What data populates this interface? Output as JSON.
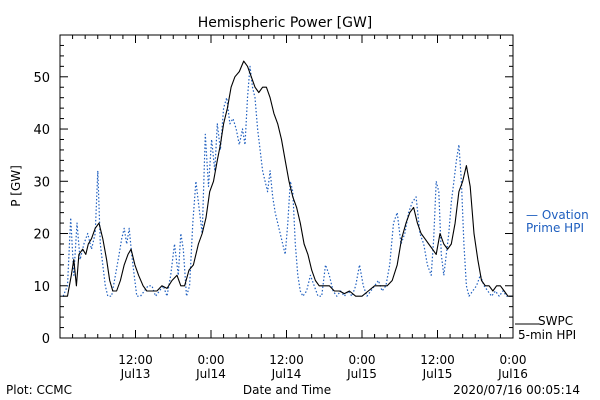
{
  "chart_data": {
    "type": "line",
    "title": "Hemispheric Power [GW]",
    "xlabel": "Date and Time",
    "ylabel": "P [GW]",
    "ylim": [
      0,
      58
    ],
    "yticks": [
      0,
      10,
      20,
      30,
      40,
      50
    ],
    "xlim": [
      0,
      72
    ],
    "x_unit": "hours from 2020-07-13 00:00",
    "xticks": [
      {
        "x": 12,
        "top": "12:00",
        "bottom": "Jul13"
      },
      {
        "x": 24,
        "top": "0:00",
        "bottom": "Jul14"
      },
      {
        "x": 36,
        "top": "12:00",
        "bottom": "Jul14"
      },
      {
        "x": 48,
        "top": "0:00",
        "bottom": "Jul15"
      },
      {
        "x": 60,
        "top": "12:00",
        "bottom": "Jul15"
      },
      {
        "x": 72,
        "top": "0:00",
        "bottom": "Jul16"
      }
    ],
    "grid": false,
    "legend": [
      {
        "name": "— Ovation",
        "name2": "Prime HPI",
        "color": "#1f5fbf",
        "style": "dotted"
      },
      {
        "name": "SWPC",
        "name2": "5-min HPI",
        "color": "#000000",
        "style": "solid"
      }
    ],
    "series": [
      {
        "name": "SWPC 5-min HPI",
        "color": "#000000",
        "style": "solid",
        "points": [
          [
            0.5,
            8
          ],
          [
            1.2,
            8
          ],
          [
            1.8,
            12
          ],
          [
            2.2,
            15
          ],
          [
            2.6,
            10
          ],
          [
            3,
            16
          ],
          [
            3.6,
            17
          ],
          [
            4.1,
            16
          ],
          [
            4.5,
            18
          ],
          [
            5,
            19
          ],
          [
            5.6,
            21
          ],
          [
            6.2,
            22
          ],
          [
            6.8,
            19
          ],
          [
            7.4,
            15
          ],
          [
            7.9,
            11
          ],
          [
            8.4,
            9
          ],
          [
            9,
            9
          ],
          [
            9.6,
            11
          ],
          [
            10.2,
            14
          ],
          [
            10.8,
            16
          ],
          [
            11.3,
            17
          ],
          [
            11.9,
            14
          ],
          [
            12.5,
            12
          ],
          [
            13.2,
            10
          ],
          [
            13.8,
            9
          ],
          [
            14.6,
            9
          ],
          [
            15.4,
            9
          ],
          [
            16.2,
            10
          ],
          [
            17,
            9.5
          ],
          [
            17.8,
            11
          ],
          [
            18.6,
            12
          ],
          [
            19.2,
            10
          ],
          [
            19.8,
            10
          ],
          [
            20.5,
            13
          ],
          [
            21.2,
            14
          ],
          [
            22,
            18
          ],
          [
            22.6,
            20
          ],
          [
            23.2,
            23
          ],
          [
            23.8,
            28
          ],
          [
            24.4,
            30
          ],
          [
            25,
            34
          ],
          [
            25.5,
            37
          ],
          [
            26,
            41
          ],
          [
            26.6,
            44
          ],
          [
            27.2,
            48
          ],
          [
            27.8,
            50
          ],
          [
            28.5,
            51
          ],
          [
            29.2,
            53
          ],
          [
            29.8,
            52
          ],
          [
            30.4,
            50
          ],
          [
            31,
            48
          ],
          [
            31.6,
            47
          ],
          [
            32.2,
            48
          ],
          [
            32.8,
            48
          ],
          [
            33.4,
            46
          ],
          [
            34,
            43
          ],
          [
            34.6,
            41
          ],
          [
            35.2,
            38
          ],
          [
            35.8,
            34
          ],
          [
            36.4,
            30
          ],
          [
            37,
            27
          ],
          [
            37.6,
            25
          ],
          [
            38.2,
            22
          ],
          [
            38.8,
            18
          ],
          [
            39.4,
            16
          ],
          [
            40,
            13
          ],
          [
            40.6,
            11
          ],
          [
            41.2,
            10
          ],
          [
            42,
            10
          ],
          [
            42.8,
            10
          ],
          [
            43.6,
            9
          ],
          [
            44.4,
            9
          ],
          [
            45.2,
            8.5
          ],
          [
            46,
            9
          ],
          [
            47,
            8
          ],
          [
            48,
            8
          ],
          [
            49,
            9
          ],
          [
            50,
            10
          ],
          [
            51,
            10
          ],
          [
            52,
            10
          ],
          [
            52.8,
            11
          ],
          [
            53.6,
            14
          ],
          [
            54.3,
            19
          ],
          [
            55,
            22
          ],
          [
            55.6,
            24
          ],
          [
            56.2,
            25
          ],
          [
            56.8,
            22
          ],
          [
            57.4,
            20
          ],
          [
            58,
            19
          ],
          [
            58.6,
            18
          ],
          [
            59.2,
            17
          ],
          [
            59.8,
            16
          ],
          [
            60.4,
            20
          ],
          [
            61,
            18
          ],
          [
            61.6,
            17
          ],
          [
            62.2,
            18
          ],
          [
            62.8,
            22
          ],
          [
            63.4,
            28
          ],
          [
            64,
            30
          ],
          [
            64.6,
            33
          ],
          [
            65.2,
            29
          ],
          [
            65.8,
            20
          ],
          [
            66.4,
            15
          ],
          [
            67,
            11
          ],
          [
            67.6,
            10
          ],
          [
            68.2,
            10
          ],
          [
            68.8,
            9
          ],
          [
            69.4,
            10
          ],
          [
            70,
            10
          ],
          [
            70.6,
            9
          ],
          [
            71.2,
            8
          ],
          [
            72,
            8
          ]
        ]
      },
      {
        "name": "Ovation Prime HPI",
        "color": "#1f5fbf",
        "style": "dotted",
        "points": [
          [
            0.5,
            8
          ],
          [
            1.2,
            10
          ],
          [
            1.7,
            23
          ],
          [
            2.2,
            12
          ],
          [
            2.7,
            22
          ],
          [
            3.2,
            15
          ],
          [
            3.8,
            18
          ],
          [
            4.4,
            20
          ],
          [
            5,
            17
          ],
          [
            5.6,
            20
          ],
          [
            6,
            32
          ],
          [
            6.4,
            18
          ],
          [
            6.8,
            14
          ],
          [
            7.2,
            10
          ],
          [
            7.6,
            8
          ],
          [
            8.2,
            8
          ],
          [
            8.8,
            12
          ],
          [
            9.4,
            16
          ],
          [
            9.8,
            19
          ],
          [
            10.2,
            21
          ],
          [
            10.6,
            18
          ],
          [
            11,
            21
          ],
          [
            11.4,
            16
          ],
          [
            11.8,
            12
          ],
          [
            12.2,
            8
          ],
          [
            12.8,
            8
          ],
          [
            13.4,
            9
          ],
          [
            14,
            10
          ],
          [
            14.6,
            10
          ],
          [
            15.2,
            8
          ],
          [
            15.8,
            9
          ],
          [
            16.4,
            10
          ],
          [
            17,
            8
          ],
          [
            17.6,
            12
          ],
          [
            18.2,
            18
          ],
          [
            18.8,
            12
          ],
          [
            19.2,
            20
          ],
          [
            19.6,
            17
          ],
          [
            20.1,
            8
          ],
          [
            20.6,
            10
          ],
          [
            21.1,
            22
          ],
          [
            21.6,
            30
          ],
          [
            22.1,
            25
          ],
          [
            22.6,
            20
          ],
          [
            23.1,
            39
          ],
          [
            23.6,
            29
          ],
          [
            24.1,
            38
          ],
          [
            24.6,
            32
          ],
          [
            25,
            41
          ],
          [
            25.5,
            36
          ],
          [
            26,
            44
          ],
          [
            26.5,
            46
          ],
          [
            27,
            41
          ],
          [
            27.5,
            42
          ],
          [
            28,
            40
          ],
          [
            28.5,
            37
          ],
          [
            29,
            40
          ],
          [
            29.4,
            37
          ],
          [
            29.8,
            46
          ],
          [
            30.2,
            52
          ],
          [
            30.6,
            48
          ],
          [
            31,
            46
          ],
          [
            31.4,
            40
          ],
          [
            31.8,
            36
          ],
          [
            32.2,
            32
          ],
          [
            32.6,
            30
          ],
          [
            33,
            28
          ],
          [
            33.4,
            32
          ],
          [
            33.8,
            27
          ],
          [
            34.2,
            24
          ],
          [
            34.6,
            22
          ],
          [
            35,
            20
          ],
          [
            35.4,
            18
          ],
          [
            35.8,
            16
          ],
          [
            36.2,
            22
          ],
          [
            36.6,
            30
          ],
          [
            37,
            28
          ],
          [
            37.4,
            18
          ],
          [
            37.8,
            12
          ],
          [
            38.2,
            9
          ],
          [
            38.6,
            8
          ],
          [
            39.2,
            9
          ],
          [
            39.8,
            12
          ],
          [
            40.4,
            10
          ],
          [
            41,
            8
          ],
          [
            41.6,
            8
          ],
          [
            42.2,
            14
          ],
          [
            42.8,
            12
          ],
          [
            43.4,
            9
          ],
          [
            44,
            8
          ],
          [
            44.6,
            9
          ],
          [
            45.2,
            8
          ],
          [
            45.8,
            9
          ],
          [
            46.4,
            8
          ],
          [
            47,
            10
          ],
          [
            47.6,
            14
          ],
          [
            48.2,
            10
          ],
          [
            48.8,
            8
          ],
          [
            49.4,
            9
          ],
          [
            50,
            10
          ],
          [
            50.6,
            11
          ],
          [
            51.2,
            9
          ],
          [
            51.8,
            10
          ],
          [
            52.4,
            14
          ],
          [
            53,
            22
          ],
          [
            53.6,
            24
          ],
          [
            54.2,
            18
          ],
          [
            54.8,
            20
          ],
          [
            55.4,
            24
          ],
          [
            56,
            26
          ],
          [
            56.6,
            27
          ],
          [
            57.2,
            20
          ],
          [
            57.8,
            18
          ],
          [
            58.4,
            14
          ],
          [
            59,
            12
          ],
          [
            59.4,
            19
          ],
          [
            59.8,
            30
          ],
          [
            60.2,
            28
          ],
          [
            60.6,
            16
          ],
          [
            61,
            12
          ],
          [
            61.4,
            16
          ],
          [
            61.8,
            20
          ],
          [
            62.2,
            26
          ],
          [
            62.6,
            30
          ],
          [
            63,
            34
          ],
          [
            63.4,
            37
          ],
          [
            63.8,
            30
          ],
          [
            64.2,
            18
          ],
          [
            64.6,
            10
          ],
          [
            65,
            8
          ],
          [
            65.6,
            9
          ],
          [
            66.2,
            10
          ],
          [
            66.8,
            12
          ],
          [
            67.4,
            10
          ],
          [
            68,
            9
          ],
          [
            68.6,
            8
          ],
          [
            69.2,
            9
          ],
          [
            69.8,
            8
          ],
          [
            70.4,
            9
          ],
          [
            71,
            8
          ],
          [
            72,
            8
          ]
        ]
      }
    ]
  },
  "footer": {
    "left": "Plot: CCMC",
    "center": "Date and Time",
    "right": "2020/07/16 00:05:14"
  }
}
